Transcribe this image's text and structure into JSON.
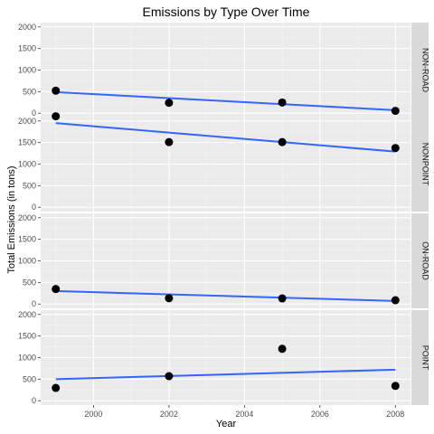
{
  "chart_data": {
    "type": "scatter",
    "title": "Emissions by Type Over Time",
    "xlabel": "Year",
    "ylabel": "Total Emissions (in tons)",
    "xlim": [
      1998.6,
      2008.4
    ],
    "ylim": [
      -100,
      2100
    ],
    "x_ticks": [
      2000,
      2002,
      2004,
      2006,
      2008
    ],
    "y_ticks": [
      0,
      500,
      1000,
      1500,
      2000
    ],
    "grid": true,
    "facets": [
      {
        "label": "NON-ROAD",
        "points": [
          {
            "x": 1999,
            "y": 523
          },
          {
            "x": 2002,
            "y": 241
          },
          {
            "x": 2005,
            "y": 249
          },
          {
            "x": 2008,
            "y": 55
          }
        ],
        "fit": {
          "x": [
            1999,
            2008
          ],
          "y": [
            490,
            70
          ]
        }
      },
      {
        "label": "NONPOINT",
        "points": [
          {
            "x": 1999,
            "y": 2108
          },
          {
            "x": 2002,
            "y": 1510
          },
          {
            "x": 2005,
            "y": 1510
          },
          {
            "x": 2008,
            "y": 1373
          }
        ],
        "fit": {
          "x": [
            1999,
            2008
          ],
          "y": [
            1950,
            1290
          ]
        }
      },
      {
        "label": "ON-ROAD",
        "points": [
          {
            "x": 1999,
            "y": 347
          },
          {
            "x": 2002,
            "y": 134
          },
          {
            "x": 2005,
            "y": 130
          },
          {
            "x": 2008,
            "y": 88
          }
        ],
        "fit": {
          "x": [
            1999,
            2008
          ],
          "y": [
            300,
            70
          ]
        }
      },
      {
        "label": "POINT",
        "points": [
          {
            "x": 1999,
            "y": 297
          },
          {
            "x": 2002,
            "y": 570
          },
          {
            "x": 2005,
            "y": 1203
          },
          {
            "x": 2008,
            "y": 345
          }
        ],
        "fit": {
          "x": [
            1999,
            2008
          ],
          "y": [
            500,
            720
          ]
        }
      }
    ],
    "colors": {
      "panel_bg": "#ebebeb",
      "grid_major": "#ffffff",
      "strip_bg": "#d9d9d9",
      "points": "#000000",
      "fit_line": "#3366ff"
    }
  }
}
